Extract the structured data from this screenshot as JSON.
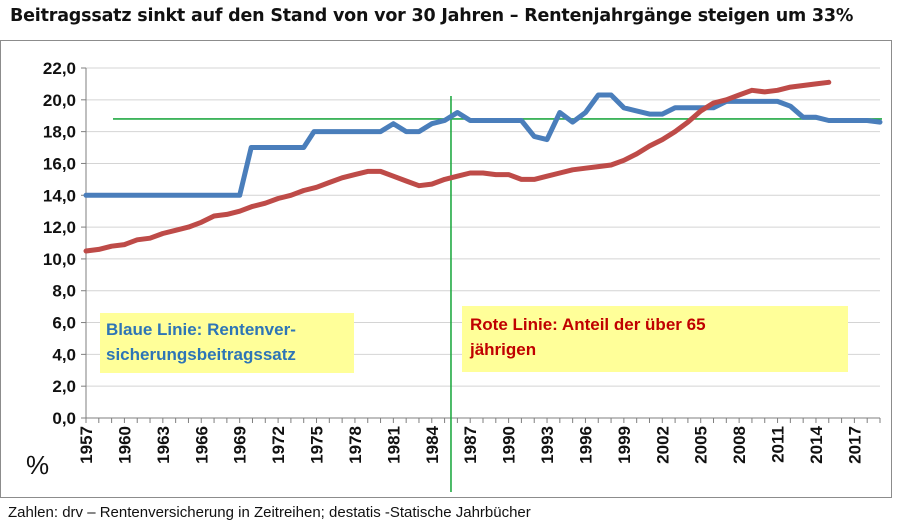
{
  "title": "Beitragssatz sinkt auf den Stand von vor 30 Jahren – Rentenjahrgänge steigen um 33%",
  "source_note": "Zahlen: drv – Rentenversicherung in Zeitreihen; destatis -Statische Jahrbücher",
  "colors": {
    "blue_series": "#4a7ebb",
    "red_series": "#be4b48",
    "reference_lines": "#22aa44",
    "grid": "#d4d4d4",
    "callout_bg": "#ffff99",
    "blue_text": "#2e75b6",
    "red_text": "#c00000"
  },
  "callouts": {
    "blue": {
      "line1": "Blaue Linie: Rentenver-",
      "line2": "sicherungsbeitragssatz"
    },
    "red": {
      "line1": "Rote Linie: Anteil der über 65",
      "line2": "jährigen"
    }
  },
  "chart_data": {
    "type": "line",
    "ylim": [
      0,
      22
    ],
    "y_ticks": [
      "0,0",
      "2,0",
      "4,0",
      "6,0",
      "8,0",
      "10,0",
      "12,0",
      "14,0",
      "16,0",
      "18,0",
      "20,0",
      "22,0"
    ],
    "y_unit_label": "%",
    "x_range": [
      1957,
      2019
    ],
    "x_tick_labels": [
      "1957",
      "1960",
      "1963",
      "1966",
      "1969",
      "1972",
      "1975",
      "1978",
      "1981",
      "1984",
      "1987",
      "1990",
      "1993",
      "1996",
      "1999",
      "2002",
      "2005",
      "2008",
      "2011",
      "2014",
      "2017"
    ],
    "grid": true,
    "reference_lines": {
      "horizontal_y": 18.8,
      "vertical_x": 1985.5
    },
    "series": [
      {
        "name": "Blaue Linie: Rentenversicherungsbeitragssatz",
        "points": [
          [
            1957,
            14.0
          ],
          [
            1968,
            14.0
          ],
          [
            1969,
            14.0
          ],
          [
            1969.9,
            17.0
          ],
          [
            1973,
            17.0
          ],
          [
            1974,
            17.0
          ],
          [
            1974.8,
            18.0
          ],
          [
            1980,
            18.0
          ],
          [
            1981,
            18.5
          ],
          [
            1982,
            18.0
          ],
          [
            1983,
            18.0
          ],
          [
            1984,
            18.5
          ],
          [
            1985,
            18.7
          ],
          [
            1986,
            19.2
          ],
          [
            1987,
            18.7
          ],
          [
            1990,
            18.7
          ],
          [
            1991,
            18.7
          ],
          [
            1992,
            17.7
          ],
          [
            1993,
            17.5
          ],
          [
            1994,
            19.2
          ],
          [
            1995,
            18.6
          ],
          [
            1996,
            19.2
          ],
          [
            1997,
            20.3
          ],
          [
            1998,
            20.3
          ],
          [
            1999,
            19.5
          ],
          [
            2001,
            19.1
          ],
          [
            2002,
            19.1
          ],
          [
            2003,
            19.5
          ],
          [
            2006,
            19.5
          ],
          [
            2007,
            19.9
          ],
          [
            2011,
            19.9
          ],
          [
            2012,
            19.6
          ],
          [
            2013,
            18.9
          ],
          [
            2014,
            18.9
          ],
          [
            2015,
            18.7
          ],
          [
            2018,
            18.7
          ],
          [
            2019,
            18.6
          ]
        ]
      },
      {
        "name": "Rote Linie: Anteil der über 65 jährigen",
        "points": [
          [
            1957,
            10.5
          ],
          [
            1958,
            10.6
          ],
          [
            1959,
            10.8
          ],
          [
            1960,
            10.9
          ],
          [
            1961,
            11.2
          ],
          [
            1962,
            11.3
          ],
          [
            1963,
            11.6
          ],
          [
            1964,
            11.8
          ],
          [
            1965,
            12.0
          ],
          [
            1966,
            12.3
          ],
          [
            1967,
            12.7
          ],
          [
            1968,
            12.8
          ],
          [
            1969,
            13.0
          ],
          [
            1970,
            13.3
          ],
          [
            1971,
            13.5
          ],
          [
            1972,
            13.8
          ],
          [
            1973,
            14.0
          ],
          [
            1974,
            14.3
          ],
          [
            1975,
            14.5
          ],
          [
            1976,
            14.8
          ],
          [
            1977,
            15.1
          ],
          [
            1978,
            15.3
          ],
          [
            1979,
            15.5
          ],
          [
            1980,
            15.5
          ],
          [
            1981,
            15.2
          ],
          [
            1982,
            14.9
          ],
          [
            1983,
            14.6
          ],
          [
            1984,
            14.7
          ],
          [
            1985,
            15.0
          ],
          [
            1986,
            15.2
          ],
          [
            1987,
            15.4
          ],
          [
            1988,
            15.4
          ],
          [
            1989,
            15.3
          ],
          [
            1990,
            15.3
          ],
          [
            1991,
            15.0
          ],
          [
            1992,
            15.0
          ],
          [
            1993,
            15.2
          ],
          [
            1994,
            15.4
          ],
          [
            1995,
            15.6
          ],
          [
            1996,
            15.7
          ],
          [
            1997,
            15.8
          ],
          [
            1998,
            15.9
          ],
          [
            1999,
            16.2
          ],
          [
            2000,
            16.6
          ],
          [
            2001,
            17.1
          ],
          [
            2002,
            17.5
          ],
          [
            2003,
            18.0
          ],
          [
            2004,
            18.6
          ],
          [
            2005,
            19.3
          ],
          [
            2006,
            19.8
          ],
          [
            2007,
            20.0
          ],
          [
            2008,
            20.3
          ],
          [
            2009,
            20.6
          ],
          [
            2010,
            20.5
          ],
          [
            2011,
            20.6
          ],
          [
            2012,
            20.8
          ],
          [
            2013,
            20.9
          ],
          [
            2014,
            21.0
          ],
          [
            2015,
            21.1
          ]
        ]
      }
    ]
  }
}
